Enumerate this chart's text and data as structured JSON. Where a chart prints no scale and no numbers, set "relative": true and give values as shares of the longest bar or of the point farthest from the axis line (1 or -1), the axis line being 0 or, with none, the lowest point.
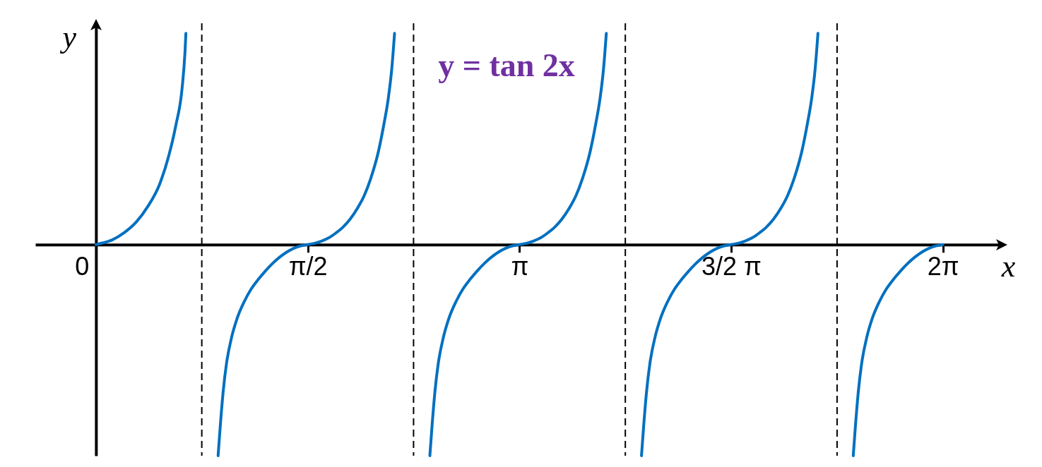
{
  "chart_data": {
    "type": "line",
    "title": "y = tan 2x",
    "xlabel": "x",
    "ylabel": "y",
    "relative": true,
    "xlim": [
      -0.45,
      6.73
    ],
    "xticks": [
      0,
      {
        "value": 1.571,
        "label": "π/2"
      },
      {
        "value": 3.142,
        "label": "π"
      },
      {
        "value": 4.712,
        "label": "3/2 π"
      },
      {
        "value": 6.283,
        "label": "2π"
      }
    ],
    "ref_lines": [
      {
        "axis": "x",
        "value": 0.785,
        "color": "#000000",
        "line_style": "dashed"
      },
      {
        "axis": "x",
        "value": 2.356,
        "color": "#000000",
        "line_style": "dashed"
      },
      {
        "axis": "x",
        "value": 3.927,
        "color": "#000000",
        "line_style": "dashed"
      },
      {
        "axis": "x",
        "value": 5.498,
        "color": "#000000",
        "line_style": "dashed"
      }
    ],
    "series": [
      {
        "color": "#0070c0",
        "x": [
          0,
          0.052,
          0.12,
          0.209,
          0.298,
          0.382,
          0.471,
          0.539,
          0.592,
          0.639,
          0.66,
          0.667,
          0.785,
          0.906,
          0.922,
          0.943,
          0.969,
          1.006,
          1.047,
          1.1,
          1.152,
          1.204,
          1.257,
          1.309,
          1.362,
          1.414,
          1.466,
          1.519,
          1.571,
          1.623,
          1.676,
          1.728,
          1.78,
          1.833,
          1.885,
          1.938,
          1.99,
          2.042,
          2.095,
          2.136,
          2.168,
          2.194,
          2.215,
          2.356,
          2.477,
          2.493,
          2.514,
          2.54,
          2.577,
          2.618,
          2.671,
          2.723,
          2.775,
          2.828,
          2.88,
          2.933,
          2.985,
          3.037,
          3.09,
          3.142,
          3.194,
          3.247,
          3.299,
          3.351,
          3.404,
          3.456,
          3.509,
          3.561,
          3.613,
          3.666,
          3.707,
          3.739,
          3.765,
          3.786,
          3.927,
          4.047,
          4.063,
          4.084,
          4.11,
          4.147,
          4.188,
          4.241,
          4.293,
          4.345,
          4.398,
          4.45,
          4.503,
          4.555,
          4.607,
          4.66,
          4.712,
          4.764,
          4.817,
          4.869,
          4.921,
          4.974,
          5.026,
          5.079,
          5.131,
          5.183,
          5.236,
          5.277,
          5.309,
          5.335,
          5.356,
          5.498,
          5.618,
          5.634,
          5.655,
          5.681,
          5.718,
          5.759,
          5.812,
          5.864,
          5.916,
          5.969,
          6.021,
          6.074,
          6.126,
          6.178,
          6.231,
          6.283
        ],
        "values": [
          0,
          0.008,
          0.022,
          0.056,
          0.106,
          0.178,
          0.284,
          0.418,
          0.563,
          0.741,
          0.908,
          1.0,
          null,
          -1.0,
          -0.86,
          -0.7,
          -0.56,
          -0.44,
          -0.35,
          -0.27,
          -0.21,
          -0.165,
          -0.125,
          -0.09,
          -0.06,
          -0.036,
          -0.018,
          -0.006,
          0,
          0.006,
          0.017,
          0.032,
          0.055,
          0.083,
          0.12,
          0.17,
          0.232,
          0.32,
          0.44,
          0.57,
          0.69,
          0.83,
          1.0,
          null,
          -1.0,
          -0.86,
          -0.7,
          -0.56,
          -0.44,
          -0.35,
          -0.27,
          -0.21,
          -0.165,
          -0.125,
          -0.09,
          -0.06,
          -0.036,
          -0.018,
          -0.006,
          0,
          0.006,
          0.017,
          0.032,
          0.055,
          0.083,
          0.12,
          0.17,
          0.232,
          0.32,
          0.44,
          0.57,
          0.69,
          0.83,
          1.0,
          null,
          -1.0,
          -0.86,
          -0.7,
          -0.56,
          -0.44,
          -0.35,
          -0.27,
          -0.21,
          -0.165,
          -0.125,
          -0.09,
          -0.06,
          -0.036,
          -0.018,
          -0.006,
          0,
          0.006,
          0.017,
          0.032,
          0.055,
          0.083,
          0.12,
          0.17,
          0.232,
          0.32,
          0.44,
          0.57,
          0.69,
          0.83,
          1.0,
          null,
          -1.0,
          -0.86,
          -0.7,
          -0.56,
          -0.44,
          -0.35,
          -0.27,
          -0.21,
          -0.165,
          -0.125,
          -0.09,
          -0.06,
          -0.036,
          -0.018,
          -0.006,
          0
        ]
      }
    ]
  }
}
